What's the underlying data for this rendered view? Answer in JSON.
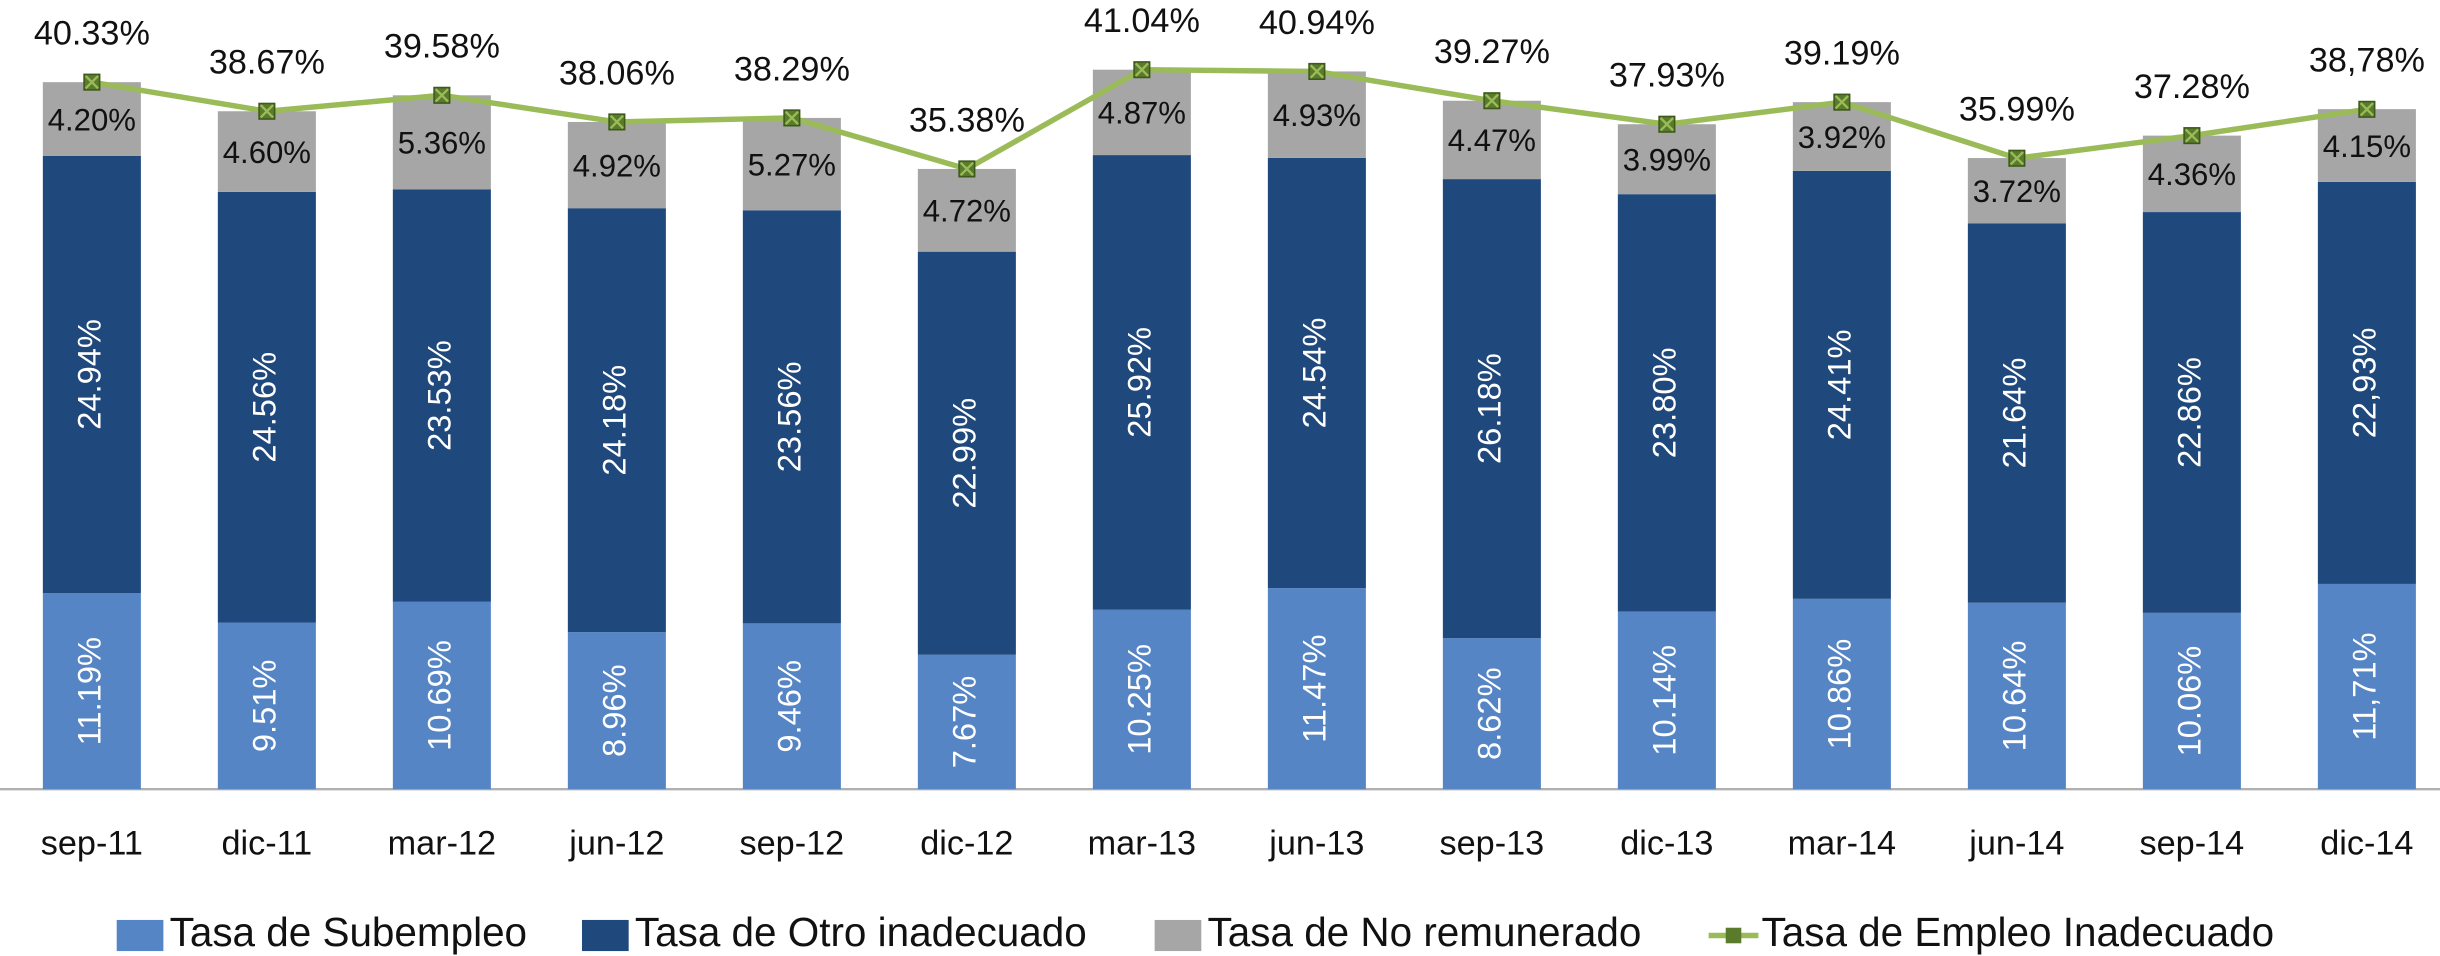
{
  "chart_data": {
    "type": "bar",
    "stacked": true,
    "categories": [
      "sep-11",
      "dic-11",
      "mar-12",
      "jun-12",
      "sep-12",
      "dic-12",
      "mar-13",
      "jun-13",
      "sep-13",
      "dic-13",
      "mar-14",
      "jun-14",
      "sep-14",
      "dic-14"
    ],
    "ylim": [
      0,
      45
    ],
    "legend": "bottom",
    "series": [
      {
        "name": "Tasa de Subempleo",
        "color": "#5585c5",
        "values": [
          11.19,
          9.51,
          10.69,
          8.96,
          9.46,
          7.67,
          10.25,
          11.47,
          8.62,
          10.14,
          10.86,
          10.64,
          10.06,
          11.71
        ],
        "value_labels": [
          "11.19%",
          "9.51%",
          "10.69%",
          "8.96%",
          "9.46%",
          "7.67%",
          "10.25%",
          "11.47%",
          "8.62%",
          "10.14%",
          "10.86%",
          "10.64%",
          "10.06%",
          "11,71%"
        ]
      },
      {
        "name": "Tasa de Otro inadecuado",
        "color": "#1f487c",
        "values": [
          24.94,
          24.56,
          23.53,
          24.18,
          23.56,
          22.99,
          25.92,
          24.54,
          26.18,
          23.8,
          24.41,
          21.64,
          22.86,
          22.93
        ],
        "value_labels": [
          "24.94%",
          "24.56%",
          "23.53%",
          "24.18%",
          "23.56%",
          "22.99%",
          "25.92%",
          "24.54%",
          "26.18%",
          "23.80%",
          "24.41%",
          "21.64%",
          "22.86%",
          "22,93%"
        ]
      },
      {
        "name": "Tasa de No remunerado",
        "color": "#a6a6a6",
        "values": [
          4.2,
          4.6,
          5.36,
          4.92,
          5.27,
          4.72,
          4.87,
          4.93,
          4.47,
          3.99,
          3.92,
          3.72,
          4.36,
          4.15
        ],
        "value_labels": [
          "4.20%",
          "4.60%",
          "5.36%",
          "4.92%",
          "5.27%",
          "4.72%",
          "4.87%",
          "4.93%",
          "4.47%",
          "3.99%",
          "3.92%",
          "3.72%",
          "4.36%",
          "4.15%"
        ]
      },
      {
        "name": "Tasa de Empleo Inadecuado",
        "color": "#9bbb59",
        "type": "line",
        "values": [
          40.33,
          38.67,
          39.58,
          38.06,
          38.29,
          35.38,
          41.04,
          40.94,
          39.27,
          37.93,
          39.19,
          35.99,
          37.28,
          38.78
        ],
        "value_labels": [
          "40.33%",
          "38.67%",
          "39.58%",
          "38.06%",
          "38.29%",
          "35.38%",
          "41.04%",
          "40.94%",
          "39.27%",
          "37.93%",
          "39.19%",
          "35.99%",
          "37.28%",
          "38,78%"
        ]
      }
    ]
  }
}
